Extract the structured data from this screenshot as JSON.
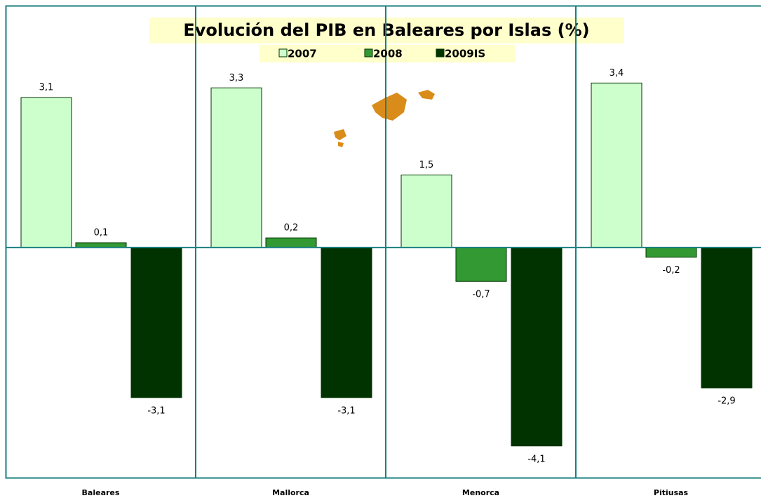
{
  "chart_data": {
    "type": "bar",
    "title": "Evolución del PIB en Baleares por Islas (%)",
    "categories": [
      "Baleares",
      "Mallorca",
      "Menorca",
      "Pitiusas"
    ],
    "series": [
      {
        "name": "2007",
        "color": "#ccffcc",
        "values": [
          3.1,
          3.3,
          1.5,
          3.4
        ],
        "value_labels": [
          "3,1",
          "3,3",
          "1,5",
          "3,4"
        ]
      },
      {
        "name": "2008",
        "color": "#339933",
        "values": [
          0.1,
          0.2,
          -0.7,
          -0.2
        ],
        "value_labels": [
          "0,1",
          "0,2",
          "-0,7",
          "-0,2"
        ]
      },
      {
        "name": "2009IS",
        "color": "#003300",
        "values": [
          -3.1,
          -3.1,
          -4.1,
          -2.9
        ],
        "value_labels": [
          "-3,1",
          "-3,1",
          "-4,1",
          "-2,9"
        ]
      }
    ],
    "ylim": [
      -4.77,
      5
    ]
  }
}
